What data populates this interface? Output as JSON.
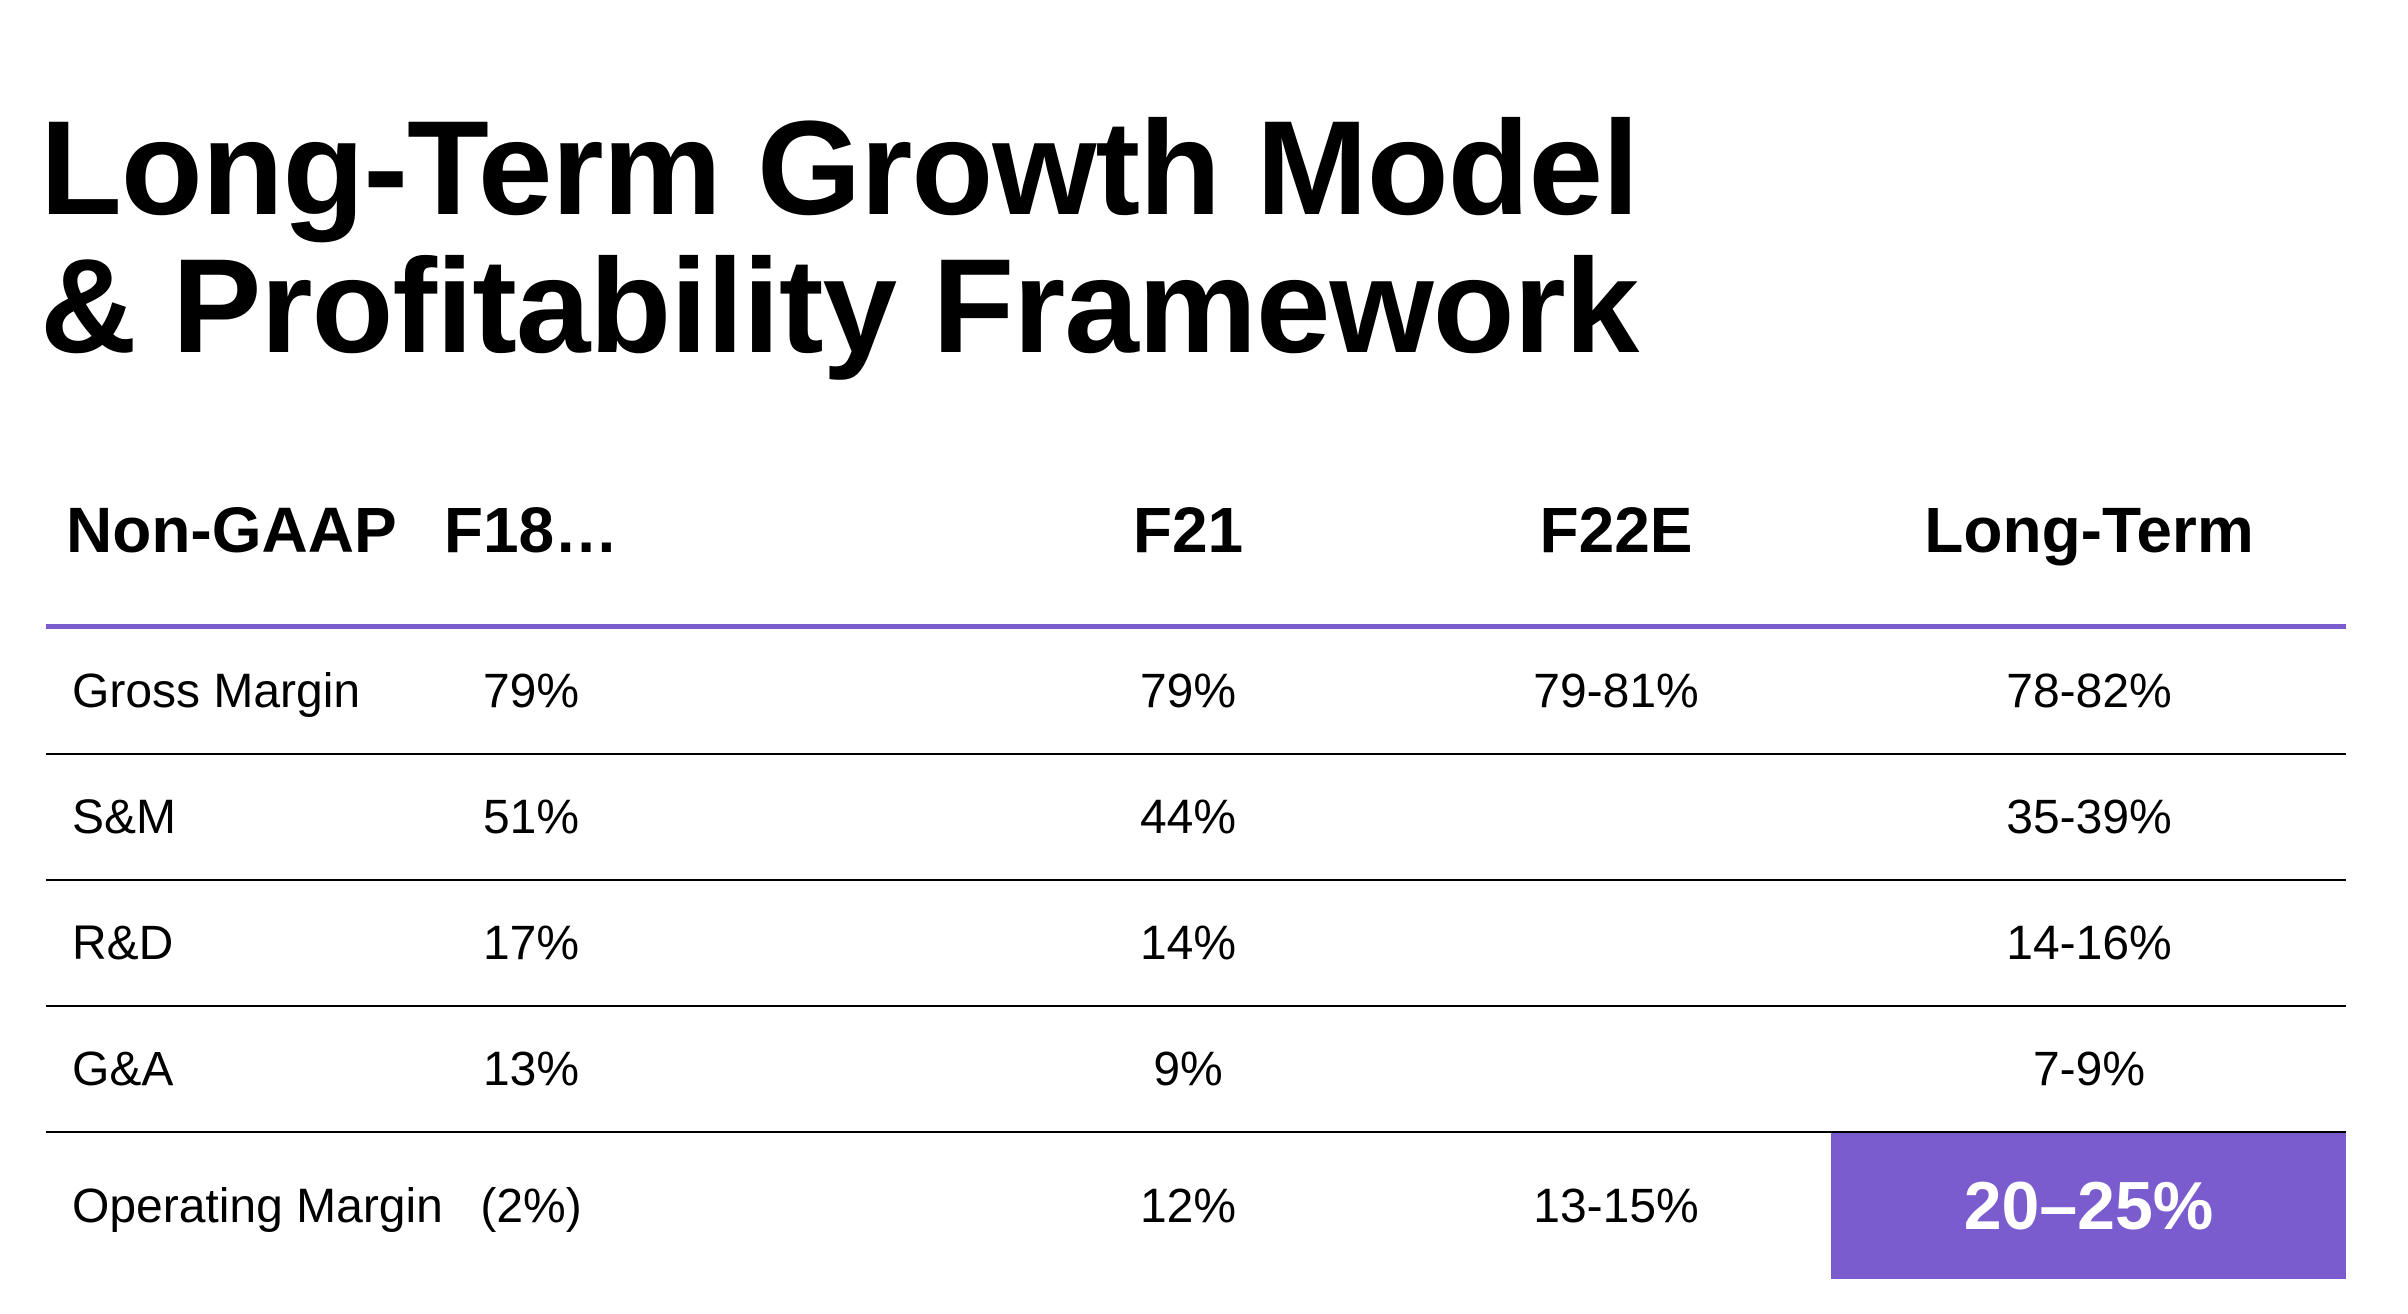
{
  "title": {
    "line1": "Long-Term Growth Model",
    "line2": "& Profitability Framework"
  },
  "table": {
    "headers": [
      "Non-GAAP",
      "F18…",
      "F21",
      "F22E",
      "Long-Term"
    ],
    "rows": [
      [
        "Gross Margin",
        "79%",
        "79%",
        "79-81%",
        "78-82%"
      ],
      [
        "S&M",
        "51%",
        "44%",
        "",
        "35-39%"
      ],
      [
        "R&D",
        "17%",
        "14%",
        "",
        "14-16%"
      ],
      [
        "G&A",
        "13%",
        "9%",
        "",
        "7-9%"
      ],
      [
        "Operating Margin",
        "(2%)",
        "12%",
        "13-15%",
        "20–25%"
      ]
    ]
  },
  "colors": {
    "accent": "#7b5ccf",
    "text": "#000000",
    "highlight_text": "#ffffff"
  }
}
